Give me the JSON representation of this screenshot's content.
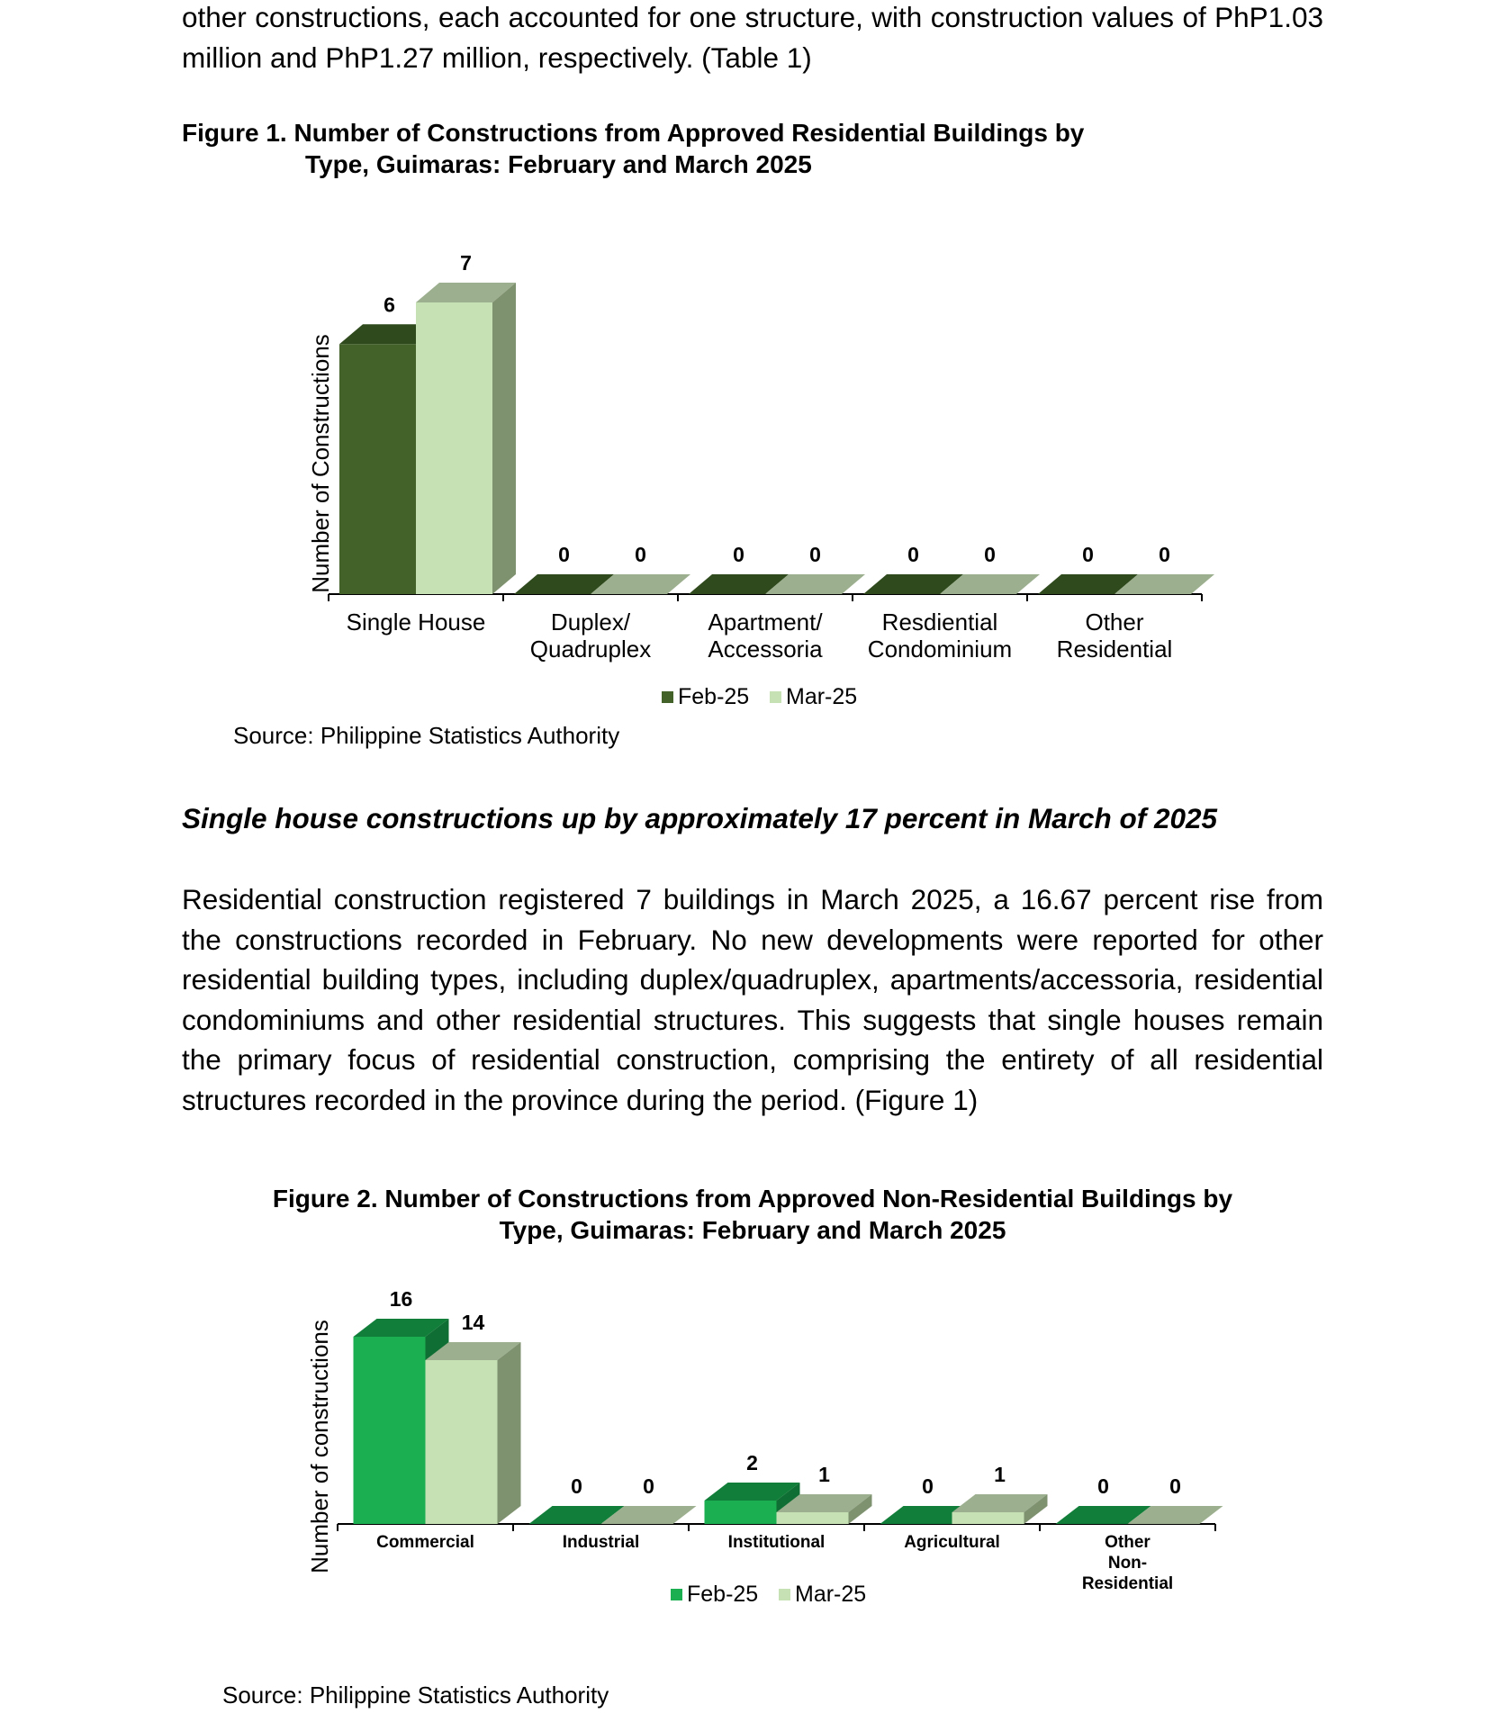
{
  "intro_paragraph": "other constructions, each accounted for one structure, with construction values of PhP1.03 million and PhP1.27 million, respectively. (Table 1)",
  "figure1": {
    "title_line1": "Figure 1. Number of Constructions from Approved Residential Buildings by",
    "title_line2": "Type, Guimaras: February and March 2025",
    "source": "Source: Philippine Statistics Authority"
  },
  "heading": "Single house constructions up by approximately 17 percent in March of 2025",
  "body_paragraph": "Residential construction registered 7 buildings in March 2025, a 16.67 percent rise from the constructions recorded in February. No new developments were reported for other residential building types, including duplex/quadruplex, apartments/accessoria, residential condominiums and other residential structures. This suggests that single houses remain the primary focus of residential construction, comprising the entirety of all residential structures recorded in the province during the period. (Figure 1)",
  "figure2": {
    "title_line1": "Figure 2. Number of Constructions from Approved Non-Residential Buildings by",
    "title_line2": "Type, Guimaras: February and March 2025",
    "source": "Source: Philippine Statistics Authority"
  },
  "colors": {
    "fig1_feb": "#43622a",
    "fig1_feb_top": "#2f4a1c",
    "fig1_feb_side": "#2c4419",
    "fig1_mar": "#c6e2b5",
    "fig1_mar_top": "#9caf8e",
    "fig1_mar_side": "#7f9270",
    "fig2_feb": "#1caf52",
    "fig2_feb_top": "#117f3a",
    "fig2_feb_side": "#0f6e33",
    "fig2_mar": "#c6e2b5",
    "fig2_mar_top": "#9caf8e",
    "fig2_mar_side": "#7f9270"
  },
  "chart_data": [
    {
      "type": "bar",
      "title": "Figure 1. Number of Constructions from Approved Residential Buildings by Type, Guimaras: February and March 2025",
      "ylabel": "Number of Constructions",
      "xlabel": "",
      "ylim": [
        0,
        7
      ],
      "grid": false,
      "legend_position": "bottom",
      "categories": [
        [
          "Single House"
        ],
        [
          "Duplex/",
          "Quadruplex"
        ],
        [
          "Apartment/",
          "Accessoria"
        ],
        [
          "Resdiential",
          "Condominium"
        ],
        [
          "Other",
          "Residential"
        ]
      ],
      "series": [
        {
          "name": "Feb-25",
          "values": [
            6,
            0,
            0,
            0,
            0
          ]
        },
        {
          "name": "Mar-25",
          "values": [
            7,
            0,
            0,
            0,
            0
          ]
        }
      ]
    },
    {
      "type": "bar",
      "title": "Figure 2. Number of Constructions from Approved Non-Residential Buildings by Type, Guimaras: February and March 2025",
      "ylabel": "Number of constructions",
      "xlabel": "",
      "ylim": [
        0,
        16
      ],
      "grid": false,
      "legend_position": "bottom",
      "categories": [
        [
          "Commercial"
        ],
        [
          "Industrial"
        ],
        [
          "Institutional"
        ],
        [
          "Agricultural"
        ],
        [
          "Other",
          "Non-",
          "Residential"
        ]
      ],
      "series": [
        {
          "name": "Feb-25",
          "values": [
            16,
            0,
            2,
            0,
            0
          ]
        },
        {
          "name": "Mar-25",
          "values": [
            14,
            0,
            1,
            1,
            0
          ]
        }
      ]
    }
  ]
}
